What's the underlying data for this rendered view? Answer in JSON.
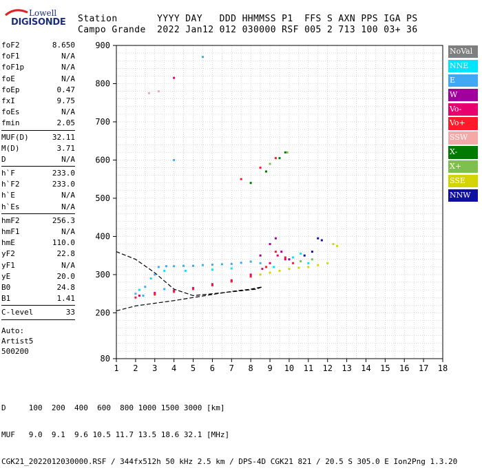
{
  "logo": {
    "line1": "Lowell",
    "line2": "DIGISONDE"
  },
  "header": {
    "row1": "Station       YYYY DAY   DDD HHMMSS P1  FFS S AXN PPS IGA PS",
    "row2": "Campo Grande  2022 Jan12 012 030000 RSF 005 2 713 100 03+ 36"
  },
  "params": {
    "group1": [
      {
        "label": "foF2",
        "value": "8.650"
      },
      {
        "label": "foF1",
        "value": "N/A"
      },
      {
        "label": "foF1p",
        "value": "N/A"
      },
      {
        "label": "foE",
        "value": "N/A"
      },
      {
        "label": "foEp",
        "value": "0.47"
      },
      {
        "label": "fxI",
        "value": "9.75"
      },
      {
        "label": "foEs",
        "value": "N/A"
      },
      {
        "label": "fmin",
        "value": "2.05"
      }
    ],
    "group2": [
      {
        "label": "MUF(D)",
        "value": "32.11"
      },
      {
        "label": "M(D)",
        "value": "3.71"
      },
      {
        "label": "D",
        "value": "N/A"
      }
    ],
    "group3": [
      {
        "label": "h`F",
        "value": "233.0"
      },
      {
        "label": "h`F2",
        "value": "233.0"
      },
      {
        "label": "h`E",
        "value": "N/A"
      },
      {
        "label": "h`Es",
        "value": "N/A"
      }
    ],
    "group4": [
      {
        "label": "hmF2",
        "value": "256.3"
      },
      {
        "label": "hmF1",
        "value": "N/A"
      },
      {
        "label": "hmE",
        "value": "110.0"
      },
      {
        "label": "yF2",
        "value": "22.8"
      },
      {
        "label": "yF1",
        "value": "N/A"
      },
      {
        "label": "yE",
        "value": "20.0"
      },
      {
        "label": "B0",
        "value": "24.8"
      },
      {
        "label": "B1",
        "value": "1.41"
      }
    ],
    "group5": [
      {
        "label": "C-level",
        "value": "33"
      }
    ],
    "auto": [
      "Auto:",
      "Artist5",
      "500200"
    ]
  },
  "legend": [
    {
      "label": "NoVal",
      "color": "#7f7f7f"
    },
    {
      "label": "NNE",
      "color": "#00e5ff"
    },
    {
      "label": "E",
      "color": "#3fa9f5"
    },
    {
      "label": "W",
      "color": "#a0009b"
    },
    {
      "label": "Vo-",
      "color": "#e8006f"
    },
    {
      "label": "Vo+",
      "color": "#ff1a2a"
    },
    {
      "label": "SSW",
      "color": "#f4a8a8"
    },
    {
      "label": "X-",
      "color": "#007a00"
    },
    {
      "label": "X+",
      "color": "#7fbf4f"
    },
    {
      "label": "SSE",
      "color": "#d4d400"
    },
    {
      "label": "NNW",
      "color": "#1010a0"
    }
  ],
  "bottom": {
    "line1": "D     100  200  400  600  800 1000 1500 3000 [km]",
    "line2": "MUF   9.0  9.1  9.6 10.5 11.7 13.5 18.6 32.1 [MHz]",
    "line3": "CGK21_2022012030000.RSF / 344fx512h 50 kHz 2.5 km / DPS-4D CGK21 821 / 20.5 S 305.0 E Ion2Png 1.3.20"
  },
  "chart_data": {
    "type": "scatter",
    "title": "",
    "xlabel": "",
    "ylabel": "",
    "xlim": [
      1,
      18
    ],
    "ylim": [
      80,
      900
    ],
    "xticks": [
      1,
      2,
      3,
      4,
      5,
      6,
      7,
      8,
      9,
      10,
      11,
      12,
      13,
      14,
      15,
      16,
      17,
      18
    ],
    "yticks": [
      80,
      200,
      300,
      400,
      500,
      600,
      700,
      800,
      900
    ],
    "grid": true,
    "legend_position": "right",
    "series": [
      {
        "name": "E",
        "color": "#3fa9f5",
        "points": [
          [
            2.0,
            250
          ],
          [
            2.5,
            268
          ],
          [
            3.0,
            300
          ],
          [
            3.2,
            320
          ],
          [
            3.6,
            322
          ],
          [
            4.0,
            322
          ],
          [
            4.5,
            323
          ],
          [
            5.0,
            323
          ],
          [
            5.5,
            325
          ],
          [
            6.0,
            326
          ],
          [
            6.5,
            327
          ],
          [
            7.0,
            328
          ],
          [
            7.5,
            331
          ],
          [
            8.0,
            334
          ],
          [
            8.5,
            330
          ],
          [
            2.4,
            245
          ],
          [
            3.5,
            262
          ],
          [
            4.0,
            600
          ],
          [
            5.5,
            870
          ]
        ]
      },
      {
        "name": "NNE",
        "color": "#00e5ff",
        "points": [
          [
            2.2,
            260
          ],
          [
            2.8,
            290
          ],
          [
            3.5,
            310
          ],
          [
            4.6,
            310
          ],
          [
            6.0,
            313
          ],
          [
            7.0,
            316
          ],
          [
            9.2,
            320
          ],
          [
            10.2,
            345
          ],
          [
            10.6,
            355
          ],
          [
            11.0,
            330
          ]
        ]
      },
      {
        "name": "W",
        "color": "#a0009b",
        "points": [
          [
            8.5,
            350
          ],
          [
            9.0,
            380
          ],
          [
            9.3,
            395
          ],
          [
            9.6,
            360
          ],
          [
            10.0,
            340
          ]
        ]
      },
      {
        "name": "Vo-",
        "color": "#e8006f",
        "points": [
          [
            2.2,
            245
          ],
          [
            3.0,
            252
          ],
          [
            4.0,
            258
          ],
          [
            5.0,
            265
          ],
          [
            6.0,
            275
          ],
          [
            7.0,
            285
          ],
          [
            8.0,
            300
          ],
          [
            8.6,
            315
          ],
          [
            9.0,
            330
          ],
          [
            9.4,
            350
          ],
          [
            9.8,
            340
          ],
          [
            4.0,
            815
          ]
        ]
      },
      {
        "name": "Vo+",
        "color": "#ff1a2a",
        "points": [
          [
            2.0,
            240
          ],
          [
            3.0,
            248
          ],
          [
            4.0,
            255
          ],
          [
            5.0,
            262
          ],
          [
            6.0,
            272
          ],
          [
            7.0,
            282
          ],
          [
            8.0,
            295
          ],
          [
            8.8,
            320
          ],
          [
            9.3,
            360
          ],
          [
            9.8,
            345
          ],
          [
            10.2,
            330
          ],
          [
            7.5,
            550
          ],
          [
            8.5,
            580
          ],
          [
            9.3,
            605
          ]
        ]
      },
      {
        "name": "X-",
        "color": "#007a00",
        "points": [
          [
            8.0,
            540
          ],
          [
            8.8,
            570
          ],
          [
            9.5,
            605
          ],
          [
            9.8,
            620
          ]
        ]
      },
      {
        "name": "X+",
        "color": "#7fbf4f",
        "points": [
          [
            9.0,
            590
          ],
          [
            9.9,
            620
          ],
          [
            10.6,
            335
          ],
          [
            11.2,
            340
          ]
        ]
      },
      {
        "name": "SSE",
        "color": "#d4d400",
        "points": [
          [
            8.5,
            300
          ],
          [
            9.0,
            305
          ],
          [
            9.5,
            310
          ],
          [
            10.0,
            315
          ],
          [
            10.5,
            318
          ],
          [
            11.0,
            320
          ],
          [
            11.5,
            325
          ],
          [
            12.0,
            330
          ],
          [
            12.3,
            380
          ],
          [
            12.5,
            375
          ]
        ]
      },
      {
        "name": "NNW",
        "color": "#1010a0",
        "points": [
          [
            10.8,
            350
          ],
          [
            11.2,
            360
          ],
          [
            11.5,
            395
          ],
          [
            11.7,
            390
          ]
        ]
      },
      {
        "name": "SSW",
        "color": "#f4a8a8",
        "points": [
          [
            2.7,
            775
          ],
          [
            3.2,
            780
          ]
        ]
      }
    ],
    "curves": [
      {
        "name": "profile",
        "points": [
          [
            1.0,
            205
          ],
          [
            2.0,
            218
          ],
          [
            3.0,
            225
          ],
          [
            4.0,
            232
          ],
          [
            5.0,
            240
          ],
          [
            6.0,
            248
          ],
          [
            7.0,
            256
          ],
          [
            8.0,
            262
          ],
          [
            8.6,
            268
          ],
          [
            8.3,
            262
          ],
          [
            7.0,
            255
          ],
          [
            6.0,
            250
          ],
          [
            5.0,
            245
          ],
          [
            4.0,
            262
          ],
          [
            3.0,
            305
          ],
          [
            2.0,
            340
          ],
          [
            1.0,
            360
          ]
        ]
      }
    ]
  }
}
